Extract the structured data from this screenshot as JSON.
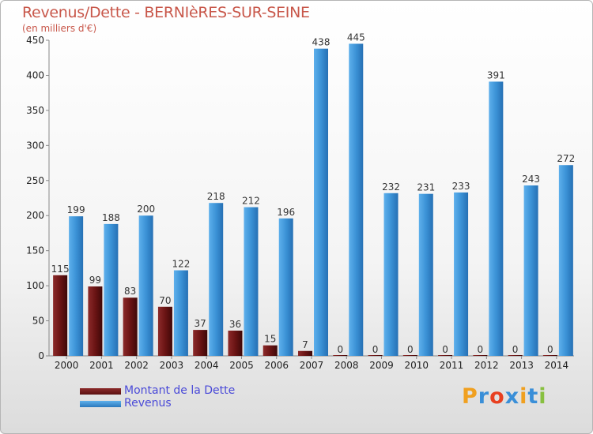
{
  "chart_data": {
    "type": "bar",
    "title": "Revenus/Dette - BERNIèRES-SUR-SEINE",
    "subtitle": "(en milliers d'€)",
    "categories": [
      "2000",
      "2001",
      "2002",
      "2003",
      "2004",
      "2005",
      "2006",
      "2007",
      "2008",
      "2009",
      "2010",
      "2011",
      "2012",
      "2013",
      "2014"
    ],
    "series": [
      {
        "name": "Montant de la Dette",
        "color": "#7a1a1a",
        "values": [
          115,
          99,
          83,
          70,
          37,
          36,
          15,
          7,
          0,
          0,
          0,
          0,
          0,
          0,
          0
        ]
      },
      {
        "name": "Revenus",
        "color": "#3d94d8",
        "values": [
          199,
          188,
          200,
          122,
          218,
          212,
          196,
          438,
          445,
          232,
          231,
          233,
          391,
          243,
          272
        ]
      }
    ],
    "ylim": [
      0,
      450
    ],
    "yticks": [
      0,
      50,
      100,
      150,
      200,
      250,
      300,
      350,
      400,
      450
    ],
    "grid": false,
    "legend_position": "bottom-left"
  },
  "logo": {
    "text": "Proxiti",
    "letters": [
      {
        "ch": "P",
        "color": "#f0a020"
      },
      {
        "ch": "r",
        "color": "#3a8fd8"
      },
      {
        "ch": "o",
        "color": "#e84020"
      },
      {
        "ch": "x",
        "color": "#3a8fd8"
      },
      {
        "ch": "i",
        "color": "#f0a020"
      },
      {
        "ch": "t",
        "color": "#3a8fd8"
      },
      {
        "ch": "i",
        "color": "#88c040"
      }
    ]
  }
}
